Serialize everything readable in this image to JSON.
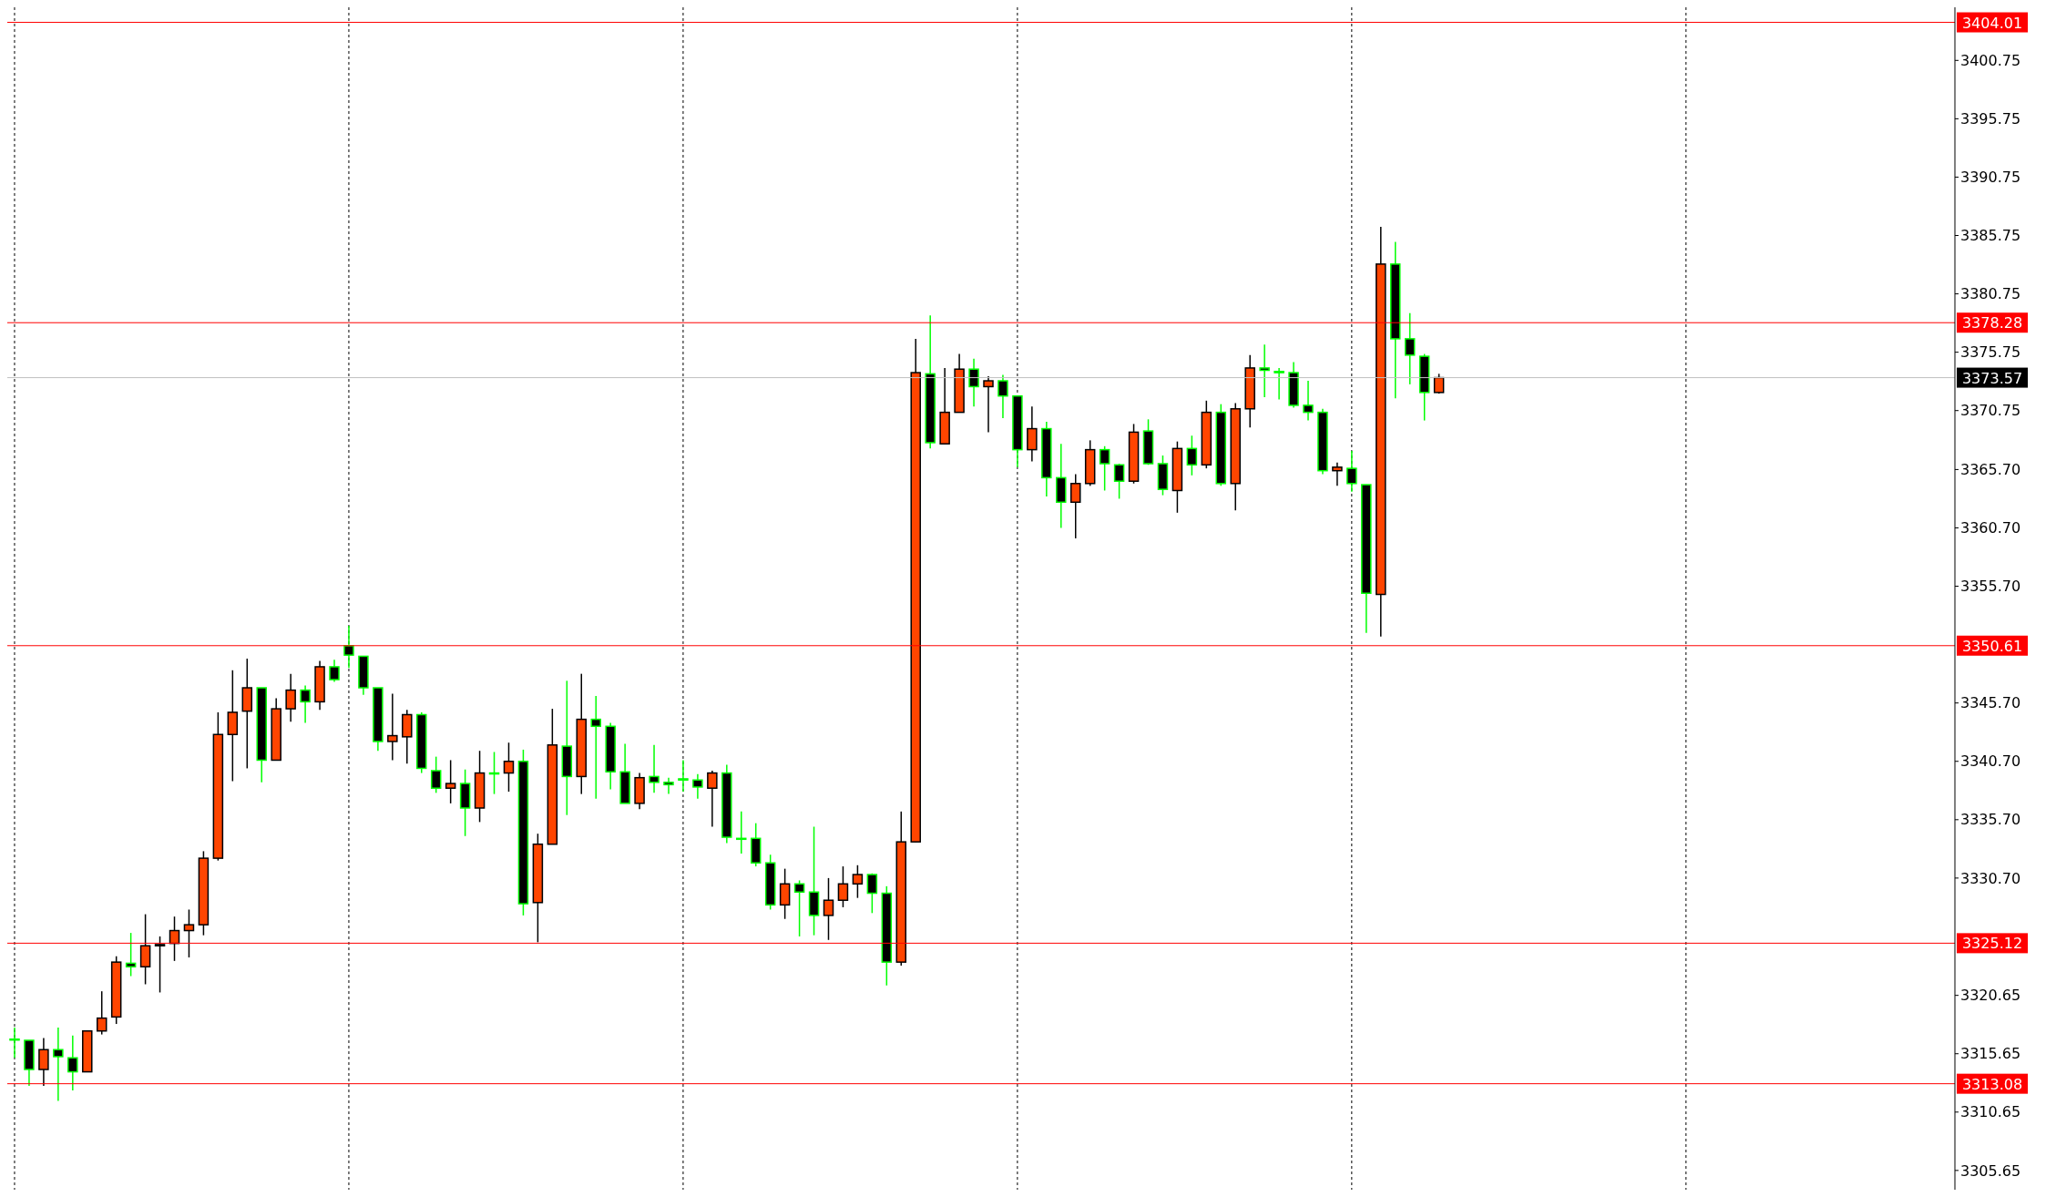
{
  "chart_data": {
    "type": "candlestick",
    "categories": [
      null,
      null,
      null,
      null,
      null,
      null,
      null,
      null,
      null,
      null,
      null,
      null,
      null,
      null,
      null,
      null,
      null,
      null,
      null,
      null,
      null,
      null,
      null,
      null,
      null,
      null,
      null,
      null,
      null,
      null,
      null,
      null,
      null,
      null,
      null,
      null,
      null,
      null,
      null,
      null,
      null,
      null,
      null,
      null,
      null,
      null,
      null,
      null,
      null,
      null,
      null,
      null,
      null,
      null,
      null,
      null,
      null,
      null,
      null,
      null,
      null,
      null,
      null,
      null,
      null,
      null,
      null,
      null,
      null,
      null,
      null,
      null,
      null,
      null,
      null,
      null,
      null,
      null,
      null,
      null,
      null,
      null,
      null,
      null,
      null,
      null,
      null,
      null,
      null,
      null,
      null,
      null,
      null,
      null,
      null,
      null,
      null,
      null,
      null,
      null,
      null,
      null,
      null,
      null,
      null,
      null,
      null,
      null,
      null,
      null,
      null,
      null,
      null,
      null,
      null,
      null,
      null,
      null,
      null,
      null,
      null,
      null,
      null,
      null,
      null,
      null,
      null,
      null,
      null,
      null,
      null,
      null,
      null,
      null
    ],
    "ohlc": [
      [
        3316.9,
        3317.9,
        3315.3,
        3316.9
      ],
      [
        3316.8,
        3316.8,
        3312.9,
        3314.3
      ],
      [
        3314.3,
        3317.0,
        3312.9,
        3316.0
      ],
      [
        3316.0,
        3317.9,
        3311.6,
        3315.4
      ],
      [
        3315.3,
        3317.2,
        3312.5,
        3314.1
      ],
      [
        3314.1,
        3317.6,
        3314.1,
        3317.6
      ],
      [
        3317.6,
        3321.0,
        3317.3,
        3318.7
      ],
      [
        3318.8,
        3324.0,
        3318.2,
        3323.5
      ],
      [
        3323.4,
        3326.0,
        3322.3,
        3323.1
      ],
      [
        3323.1,
        3327.6,
        3321.6,
        3324.9
      ],
      [
        3324.9,
        3325.7,
        3320.9,
        3325.0
      ],
      [
        3325.1,
        3327.4,
        3323.6,
        3326.2
      ],
      [
        3326.2,
        3328.0,
        3323.9,
        3326.7
      ],
      [
        3326.7,
        3333.0,
        3325.8,
        3332.4
      ],
      [
        3332.4,
        3344.9,
        3332.2,
        3343.0
      ],
      [
        3343.0,
        3348.5,
        3339.0,
        3344.9
      ],
      [
        3345.0,
        3349.5,
        3340.1,
        3347.0
      ],
      [
        3347.0,
        3347.0,
        3338.9,
        3340.8
      ],
      [
        3340.8,
        3346.1,
        3340.8,
        3345.2
      ],
      [
        3345.2,
        3348.2,
        3344.1,
        3346.8
      ],
      [
        3346.8,
        3347.2,
        3344.0,
        3345.8
      ],
      [
        3345.8,
        3349.3,
        3345.1,
        3348.8
      ],
      [
        3348.8,
        3349.4,
        3347.5,
        3347.7
      ],
      [
        3350.6,
        3352.3,
        3348.7,
        3349.8
      ],
      [
        3349.7,
        3349.7,
        3346.4,
        3347.0
      ],
      [
        3347.0,
        3347.0,
        3341.6,
        3342.4
      ],
      [
        3342.4,
        3346.5,
        3340.8,
        3342.9
      ],
      [
        3342.8,
        3345.1,
        3340.5,
        3344.7
      ],
      [
        3344.7,
        3344.9,
        3339.7,
        3340.1
      ],
      [
        3339.9,
        3341.1,
        3338.0,
        3338.4
      ],
      [
        3338.4,
        3340.8,
        3337.1,
        3338.8
      ],
      [
        3338.8,
        3340.0,
        3334.3,
        3336.7
      ],
      [
        3336.7,
        3341.6,
        3335.5,
        3339.7
      ],
      [
        3339.7,
        3341.5,
        3337.9,
        3339.7
      ],
      [
        3339.7,
        3342.3,
        3338.1,
        3340.7
      ],
      [
        3340.7,
        3341.7,
        3327.5,
        3328.5
      ],
      [
        3328.6,
        3334.5,
        3325.2,
        3333.6
      ],
      [
        3333.6,
        3345.2,
        3333.6,
        3342.1
      ],
      [
        3342.0,
        3347.6,
        3336.1,
        3339.4
      ],
      [
        3339.4,
        3348.2,
        3337.9,
        3344.3
      ],
      [
        3344.3,
        3346.3,
        3337.5,
        3343.7
      ],
      [
        3343.7,
        3344.0,
        3338.3,
        3339.8
      ],
      [
        3339.8,
        3342.2,
        3337.1,
        3337.1
      ],
      [
        3337.1,
        3339.7,
        3336.6,
        3339.3
      ],
      [
        3339.4,
        3342.1,
        3338.0,
        3338.9
      ],
      [
        3338.9,
        3339.3,
        3337.9,
        3338.7
      ],
      [
        3339.2,
        3340.8,
        3338.1,
        3339.1
      ],
      [
        3339.1,
        3339.6,
        3337.5,
        3338.5
      ],
      [
        3338.4,
        3339.9,
        3335.1,
        3339.7
      ],
      [
        3339.7,
        3340.4,
        3333.7,
        3334.2
      ],
      [
        3334.1,
        3336.4,
        3332.8,
        3334.1
      ],
      [
        3334.1,
        3335.4,
        3331.7,
        3332.0
      ],
      [
        3332.0,
        3332.7,
        3328.0,
        3328.4
      ],
      [
        3328.4,
        3331.5,
        3327.2,
        3330.2
      ],
      [
        3330.2,
        3330.5,
        3325.7,
        3329.5
      ],
      [
        3329.5,
        3335.1,
        3325.8,
        3327.5
      ],
      [
        3327.5,
        3330.7,
        3325.4,
        3328.8
      ],
      [
        3328.8,
        3331.7,
        3328.2,
        3330.2
      ],
      [
        3330.2,
        3331.8,
        3329.0,
        3331.0
      ],
      [
        3331.0,
        3331.1,
        3327.7,
        3329.4
      ],
      [
        3329.4,
        3330.0,
        3321.5,
        3323.5
      ],
      [
        3323.5,
        3336.4,
        3323.2,
        3333.8
      ],
      [
        3333.8,
        3376.9,
        3333.8,
        3374.0
      ],
      [
        3373.9,
        3378.9,
        3367.5,
        3368.0
      ],
      [
        3367.9,
        3374.4,
        3367.9,
        3370.6
      ],
      [
        3370.6,
        3375.6,
        3370.6,
        3374.3
      ],
      [
        3374.3,
        3375.2,
        3371.1,
        3372.8
      ],
      [
        3372.8,
        3373.7,
        3368.9,
        3373.3
      ],
      [
        3373.3,
        3373.8,
        3370.1,
        3372.0
      ],
      [
        3372.0,
        3372.0,
        3365.9,
        3367.4
      ],
      [
        3367.4,
        3371.1,
        3366.4,
        3369.2
      ],
      [
        3369.2,
        3369.8,
        3363.4,
        3365.0
      ],
      [
        3365.0,
        3367.9,
        3360.7,
        3362.9
      ],
      [
        3362.9,
        3365.3,
        3359.8,
        3364.5
      ],
      [
        3364.5,
        3368.2,
        3364.3,
        3367.4
      ],
      [
        3367.4,
        3367.7,
        3363.9,
        3366.2
      ],
      [
        3366.1,
        3366.2,
        3363.2,
        3364.7
      ],
      [
        3364.7,
        3369.6,
        3364.5,
        3368.9
      ],
      [
        3369.0,
        3370.0,
        3366.1,
        3366.2
      ],
      [
        3366.2,
        3366.9,
        3363.5,
        3364.0
      ],
      [
        3363.9,
        3368.1,
        3362.0,
        3367.5
      ],
      [
        3367.5,
        3368.6,
        3365.2,
        3366.1
      ],
      [
        3366.1,
        3371.6,
        3365.8,
        3370.6
      ],
      [
        3370.6,
        3371.3,
        3364.3,
        3364.5
      ],
      [
        3364.5,
        3371.4,
        3362.2,
        3370.9
      ],
      [
        3370.9,
        3375.5,
        3369.3,
        3374.4
      ],
      [
        3374.4,
        3376.4,
        3371.9,
        3374.2
      ],
      [
        3374.1,
        3374.4,
        3371.7,
        3374.0
      ],
      [
        3374.0,
        3374.9,
        3371.0,
        3371.2
      ],
      [
        3371.2,
        3373.3,
        3369.9,
        3370.6
      ],
      [
        3370.6,
        3370.9,
        3365.3,
        3365.6
      ],
      [
        3365.6,
        3366.3,
        3364.3,
        3365.9
      ],
      [
        3365.8,
        3367.3,
        3363.8,
        3364.5
      ],
      [
        3364.4,
        3364.4,
        3351.7,
        3355.1
      ],
      [
        3355.0,
        3386.5,
        3351.4,
        3383.3
      ],
      [
        3383.3,
        3385.2,
        3371.8,
        3376.9
      ],
      [
        3376.9,
        3379.1,
        3373.0,
        3375.5
      ],
      [
        3375.4,
        3375.6,
        3369.9,
        3372.3
      ],
      [
        3372.3,
        3373.9,
        3372.2,
        3373.57
      ],
      null,
      null,
      null,
      null,
      null,
      null,
      null,
      null,
      null,
      null,
      null,
      null,
      null,
      null,
      null,
      null,
      null,
      null,
      null,
      null,
      null,
      null,
      null,
      null,
      null,
      null,
      null,
      null,
      null,
      null,
      null,
      null,
      null,
      null,
      null
    ],
    "ylim": [
      3304.0,
      3405.3
    ],
    "yticks": [
      3400.75,
      3395.75,
      3390.75,
      3385.75,
      3380.75,
      3375.75,
      3370.75,
      {
        "value": 3365.7,
        "label": "3365.70"
      },
      {
        "value": 3360.7,
        "label": "3360.70"
      },
      {
        "value": 3355.7,
        "label": "3355.70"
      },
      {
        "value": 3345.7,
        "label": "3345.70"
      },
      {
        "value": 3340.7,
        "label": "3340.70"
      },
      {
        "value": 3335.7,
        "label": "3335.70"
      },
      {
        "value": 3330.7,
        "label": "3330.70"
      },
      3320.65,
      3315.65,
      3310.65,
      3305.65
    ],
    "ref_lines": [
      {
        "axis": "y",
        "value": 3404.01,
        "label": "3404.01",
        "color": "#ff0000"
      },
      {
        "axis": "y",
        "value": 3378.28,
        "label": "3378.28",
        "color": "#ff0000"
      },
      {
        "axis": "y",
        "value": 3373.57,
        "label": "3373.57",
        "color": "#c0c0c0"
      },
      {
        "axis": "y",
        "value": 3350.61,
        "label": "3350.61",
        "color": "#ff0000"
      },
      {
        "axis": "y",
        "value": 3325.12,
        "label": "3325.12",
        "color": "#ff0000"
      },
      {
        "axis": "y",
        "value": 3313.08,
        "label": "3313.08",
        "color": "#ff0000"
      }
    ],
    "tick_labels": "y"
  }
}
